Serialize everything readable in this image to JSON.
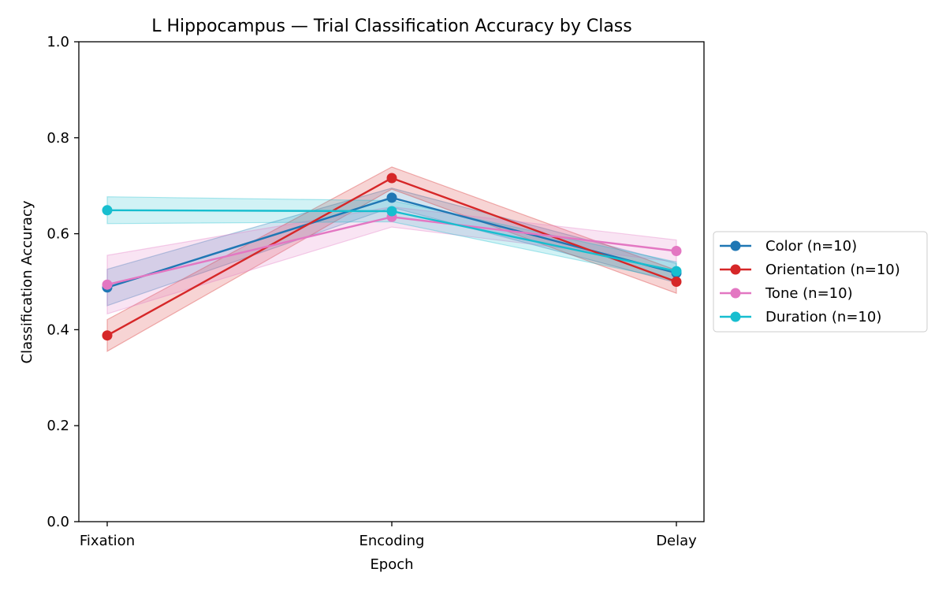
{
  "chart_data": {
    "type": "line",
    "title": "L Hippocampus — Trial Classification Accuracy by Class",
    "xlabel": "Epoch",
    "ylabel": "Classification Accuracy",
    "categories": [
      "Fixation",
      "Encoding",
      "Delay"
    ],
    "ylim": [
      0,
      1
    ],
    "yticks": [
      "0.0",
      "0.2",
      "0.4",
      "0.6",
      "0.8",
      "1.0"
    ],
    "grid": false,
    "legend_position": "center-right outside",
    "series": [
      {
        "name": "Color (n=10)",
        "color": "#1f77b4",
        "values": [
          0.488,
          0.675,
          0.518
        ],
        "lower": [
          0.45,
          0.655,
          0.498
        ],
        "upper": [
          0.526,
          0.695,
          0.538
        ]
      },
      {
        "name": "Orientation (n=10)",
        "color": "#d62728",
        "values": [
          0.388,
          0.716,
          0.5
        ],
        "lower": [
          0.355,
          0.693,
          0.476
        ],
        "upper": [
          0.421,
          0.739,
          0.524
        ]
      },
      {
        "name": "Tone (n=10)",
        "color": "#e377c2",
        "values": [
          0.494,
          0.635,
          0.564
        ],
        "lower": [
          0.433,
          0.614,
          0.541
        ],
        "upper": [
          0.555,
          0.656,
          0.587
        ]
      },
      {
        "name": "Duration (n=10)",
        "color": "#17becf",
        "values": [
          0.649,
          0.647,
          0.522
        ],
        "lower": [
          0.621,
          0.625,
          0.503
        ],
        "upper": [
          0.677,
          0.669,
          0.541
        ]
      }
    ]
  }
}
